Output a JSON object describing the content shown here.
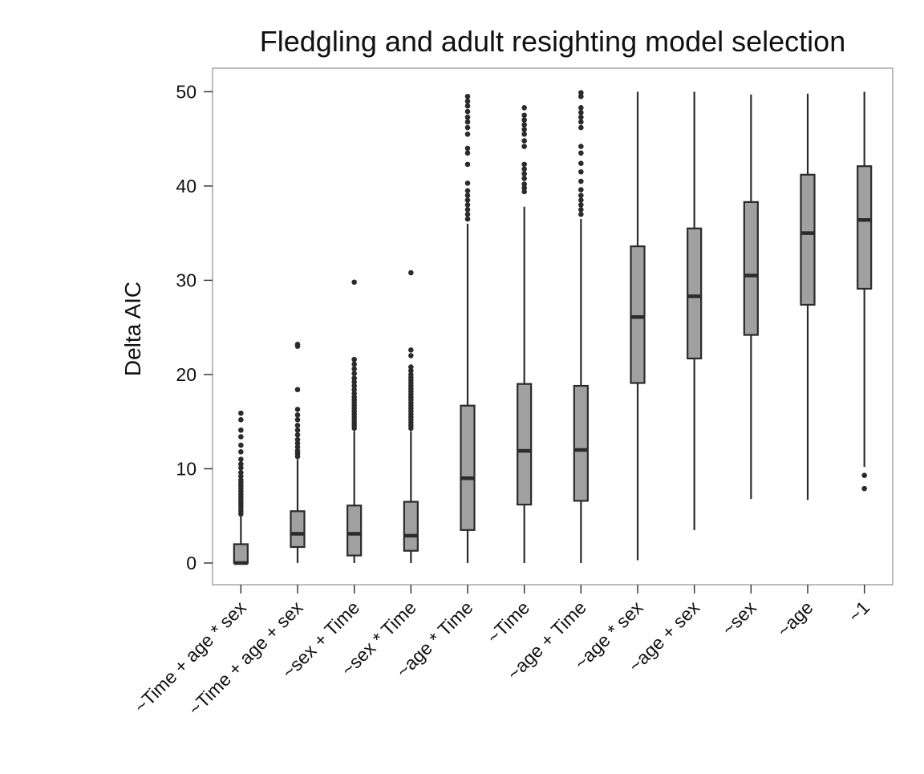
{
  "chart_data": {
    "type": "box",
    "title": "Fledgling and adult resighting model selection",
    "xlabel": "",
    "ylabel": "Delta AIC",
    "ylim": [
      -2.3,
      52.5
    ],
    "yticks": [
      0,
      10,
      20,
      30,
      40,
      50
    ],
    "grid": false,
    "legend": "none",
    "colors": {
      "box_fill": "#a0a0a0",
      "stroke": "#2b2b2b",
      "frame": "#909090"
    },
    "categories": [
      "~Time + age * sex",
      "~Time + age + sex",
      "~sex + Time",
      "~sex * Time",
      "~age * Time",
      "~Time",
      "~age + Time",
      "~age * sex",
      "~age + sex",
      "~sex",
      "~age",
      "~1"
    ],
    "boxes": [
      {
        "whisker_low": 0,
        "q1": 0,
        "median": 0,
        "q3": 2.0,
        "whisker_high": 5.0,
        "outliers": [
          5.2,
          5.5,
          5.8,
          6.1,
          6.4,
          6.7,
          7.0,
          7.3,
          7.6,
          7.9,
          8.2,
          8.5,
          8.8,
          9.2,
          9.6,
          10.1,
          10.5,
          11.0,
          11.8,
          12.5,
          13.4,
          14.1,
          15.2,
          15.9
        ]
      },
      {
        "whisker_low": 0,
        "q1": 1.7,
        "median": 3.1,
        "q3": 5.5,
        "whisker_high": 11.0,
        "outliers": [
          11.3,
          11.6,
          11.9,
          12.3,
          12.7,
          13.1,
          13.6,
          14.1,
          14.6,
          15.2,
          15.7,
          16.3,
          18.4,
          23.0,
          23.2
        ]
      },
      {
        "whisker_low": 0,
        "q1": 0.8,
        "median": 3.1,
        "q3": 6.1,
        "whisker_high": 14.0,
        "outliers": [
          14.3,
          14.6,
          14.9,
          15.2,
          15.5,
          15.8,
          16.1,
          16.4,
          16.7,
          17.0,
          17.3,
          17.6,
          18.0,
          18.4,
          18.8,
          19.2,
          19.6,
          20.1,
          20.6,
          21.1,
          21.6,
          29.8
        ]
      },
      {
        "whisker_low": 0,
        "q1": 1.3,
        "median": 2.9,
        "q3": 6.5,
        "whisker_high": 14.0,
        "outliers": [
          14.3,
          14.6,
          14.9,
          15.2,
          15.5,
          15.8,
          16.1,
          16.4,
          16.7,
          17.0,
          17.3,
          17.6,
          17.9,
          18.2,
          18.5,
          18.8,
          19.1,
          19.4,
          19.7,
          20.0,
          20.4,
          20.8,
          22.0,
          22.6,
          30.8
        ]
      },
      {
        "whisker_low": 0,
        "q1": 3.5,
        "median": 9.0,
        "q3": 16.7,
        "whisker_high": 36.0,
        "outliers": [
          36.5,
          37.0,
          37.5,
          38.0,
          38.5,
          39.0,
          39.5,
          40.3,
          42.3,
          43.5,
          44.0,
          45.5,
          46.2,
          46.8,
          47.3,
          47.9,
          48.5,
          49.0,
          49.5
        ]
      },
      {
        "whisker_low": 0,
        "q1": 6.2,
        "median": 11.9,
        "q3": 19.0,
        "whisker_high": 37.8,
        "outliers": [
          39.4,
          39.8,
          40.2,
          40.8,
          41.3,
          41.8,
          42.3,
          44.2,
          44.8,
          45.5,
          46.0,
          46.5,
          47.0,
          47.5,
          48.3
        ]
      },
      {
        "whisker_low": 0,
        "q1": 6.6,
        "median": 12.0,
        "q3": 18.8,
        "whisker_high": 36.5,
        "outliers": [
          37.0,
          37.5,
          38.0,
          38.5,
          39.0,
          39.6,
          40.5,
          41.5,
          42.4,
          43.5,
          44.2,
          46.2,
          46.8,
          47.3,
          47.8,
          48.3,
          49.5,
          49.9
        ]
      },
      {
        "whisker_low": 0.3,
        "q1": 19.1,
        "median": 26.1,
        "q3": 33.6,
        "whisker_high": 50.0,
        "outliers": []
      },
      {
        "whisker_low": 3.5,
        "q1": 21.7,
        "median": 28.3,
        "q3": 35.5,
        "whisker_high": 50.0,
        "outliers": []
      },
      {
        "whisker_low": 6.8,
        "q1": 24.2,
        "median": 30.5,
        "q3": 38.3,
        "whisker_high": 49.7,
        "outliers": []
      },
      {
        "whisker_low": 6.7,
        "q1": 27.4,
        "median": 35.0,
        "q3": 41.2,
        "whisker_high": 49.8,
        "outliers": []
      },
      {
        "whisker_low": 10.2,
        "q1": 29.1,
        "median": 36.4,
        "q3": 42.1,
        "whisker_high": 50.0,
        "outliers": [
          7.9,
          9.3
        ]
      }
    ]
  }
}
